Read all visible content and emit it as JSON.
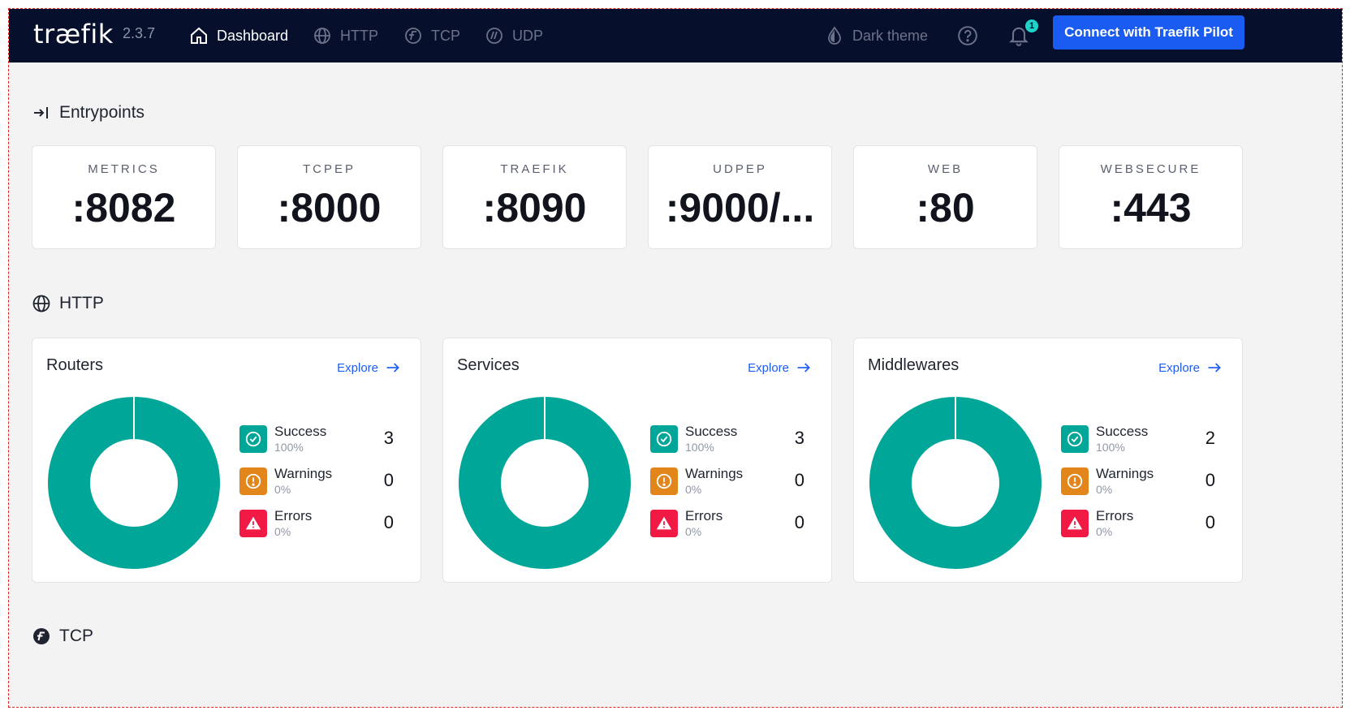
{
  "header": {
    "logo": "træfik",
    "version": "2.3.7",
    "nav": [
      {
        "label": "Dashboard",
        "icon": "home-icon"
      },
      {
        "label": "HTTP",
        "icon": "globe-icon"
      },
      {
        "label": "TCP",
        "icon": "tcp-icon"
      },
      {
        "label": "UDP",
        "icon": "udp-icon"
      }
    ],
    "theme_label": "Dark theme",
    "notification_count": "1",
    "pilot_button": "Connect with Traefik Pilot"
  },
  "entrypoints": {
    "title": "Entrypoints",
    "items": [
      {
        "name": "METRICS",
        "port": ":8082"
      },
      {
        "name": "TCPEP",
        "port": ":8000"
      },
      {
        "name": "TRAEFIK",
        "port": ":8090"
      },
      {
        "name": "UDPEP",
        "port": ":9000/..."
      },
      {
        "name": "WEB",
        "port": ":80"
      },
      {
        "name": "WEBSECURE",
        "port": ":443"
      }
    ]
  },
  "http": {
    "title": "HTTP",
    "explore_label": "Explore",
    "cards": [
      {
        "title": "Routers",
        "stats": [
          {
            "label": "Success",
            "percent": "100%",
            "count": "3"
          },
          {
            "label": "Warnings",
            "percent": "0%",
            "count": "0"
          },
          {
            "label": "Errors",
            "percent": "0%",
            "count": "0"
          }
        ]
      },
      {
        "title": "Services",
        "stats": [
          {
            "label": "Success",
            "percent": "100%",
            "count": "3"
          },
          {
            "label": "Warnings",
            "percent": "0%",
            "count": "0"
          },
          {
            "label": "Errors",
            "percent": "0%",
            "count": "0"
          }
        ]
      },
      {
        "title": "Middlewares",
        "stats": [
          {
            "label": "Success",
            "percent": "100%",
            "count": "2"
          },
          {
            "label": "Warnings",
            "percent": "0%",
            "count": "0"
          },
          {
            "label": "Errors",
            "percent": "0%",
            "count": "0"
          }
        ]
      }
    ]
  },
  "tcp": {
    "title": "TCP"
  },
  "colors": {
    "topbar": "#06102d",
    "accent": "#1a5cf2",
    "success": "#00a697",
    "warning": "#e2861c",
    "error": "#f01a44"
  }
}
